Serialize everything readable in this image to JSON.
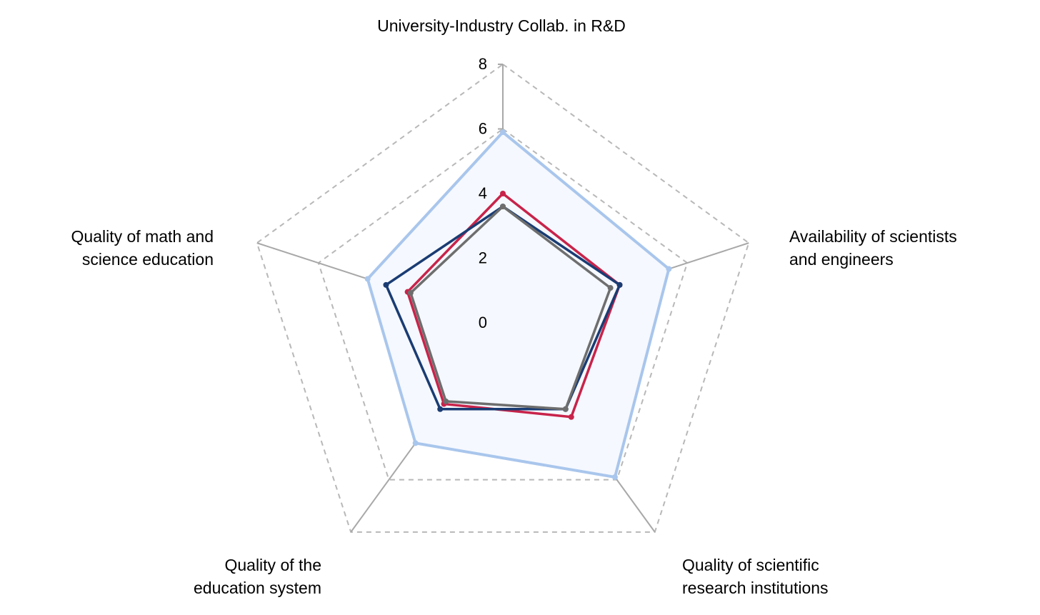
{
  "chart_data": {
    "type": "radar",
    "title": "",
    "axes": [
      {
        "label_lines": [
          "University-Industry Collab. in R&D"
        ]
      },
      {
        "label_lines": [
          "Availability of scientists",
          "and engineers"
        ]
      },
      {
        "label_lines": [
          "Quality of scientific",
          "research institutions"
        ]
      },
      {
        "label_lines": [
          "Quality of the",
          "education system"
        ]
      },
      {
        "label_lines": [
          "Quality of math and",
          "science education"
        ]
      }
    ],
    "range": [
      0,
      8
    ],
    "ticks": [
      0,
      2,
      4,
      6,
      8
    ],
    "grid": "dashed",
    "legend": "none",
    "series": [
      {
        "color": "#a9c6ec",
        "fill": "#f5f8fe",
        "values": [
          5.9,
          5.4,
          5.9,
          4.6,
          4.4
        ]
      },
      {
        "color": "#c8234a",
        "values": [
          4.0,
          3.8,
          3.6,
          3.1,
          3.1
        ]
      },
      {
        "color": "#1a3c73",
        "values": [
          3.6,
          3.8,
          3.3,
          3.3,
          3.8
        ]
      },
      {
        "color": "#6e6e6e",
        "values": [
          3.6,
          3.5,
          3.3,
          3.0,
          3.0
        ]
      }
    ]
  }
}
